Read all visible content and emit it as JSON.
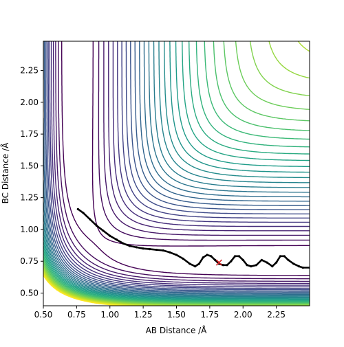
{
  "chart_data": {
    "type": "contour",
    "title": "",
    "xlabel": "AB Distance /Å",
    "ylabel": "BC Distance /Å",
    "xlim": [
      0.5,
      2.5
    ],
    "ylim": [
      0.4,
      2.48
    ],
    "xticks": [
      0.5,
      0.75,
      1.0,
      1.25,
      1.5,
      1.75,
      2.0,
      2.25
    ],
    "yticks": [
      0.5,
      0.75,
      1.0,
      1.25,
      1.5,
      1.75,
      2.0,
      2.25
    ],
    "xtick_labels": [
      "0.50",
      "0.75",
      "1.00",
      "1.25",
      "1.50",
      "1.75",
      "2.00",
      "2.25"
    ],
    "ytick_labels": [
      "0.50",
      "0.75",
      "1.00",
      "1.25",
      "1.50",
      "1.75",
      "2.00",
      "2.25"
    ],
    "grid": false,
    "colormap": "viridis",
    "contour_colors": [
      "#440154",
      "#482878",
      "#3e4a89",
      "#31688e",
      "#26828e",
      "#1f9e89",
      "#35b779",
      "#6ece58",
      "#b5de2b",
      "#fde725"
    ],
    "surface": {
      "type": "LEPS",
      "potential_levels": [
        -4.5,
        -4.35,
        -4.2,
        -4.05,
        -3.9,
        -3.75,
        -3.6,
        -3.45,
        -3.3,
        -3.15,
        -3.0,
        -2.85,
        -2.7,
        -2.55,
        -2.4,
        -2.25,
        -2.1,
        -1.95,
        -1.8,
        -1.65,
        -1.5,
        -1.35,
        -1.2,
        -1.05,
        -0.9,
        -0.75,
        -0.6,
        -0.45,
        -0.3,
        -0.15,
        0.0,
        0.15
      ]
    },
    "trajectory": {
      "color": "#000000",
      "points": [
        [
          0.76,
          1.16
        ],
        [
          0.8,
          1.13
        ],
        [
          0.85,
          1.08
        ],
        [
          0.9,
          1.03
        ],
        [
          0.95,
          0.99
        ],
        [
          1.0,
          0.95
        ],
        [
          1.05,
          0.92
        ],
        [
          1.1,
          0.89
        ],
        [
          1.15,
          0.87
        ],
        [
          1.2,
          0.86
        ],
        [
          1.25,
          0.85
        ],
        [
          1.3,
          0.845
        ],
        [
          1.35,
          0.84
        ],
        [
          1.4,
          0.835
        ],
        [
          1.45,
          0.82
        ],
        [
          1.5,
          0.8
        ],
        [
          1.55,
          0.77
        ],
        [
          1.6,
          0.73
        ],
        [
          1.64,
          0.71
        ],
        [
          1.67,
          0.73
        ],
        [
          1.7,
          0.78
        ],
        [
          1.73,
          0.8
        ],
        [
          1.76,
          0.79
        ],
        [
          1.79,
          0.76
        ],
        [
          1.82,
          0.73
        ],
        [
          1.85,
          0.72
        ],
        [
          1.88,
          0.72
        ],
        [
          1.91,
          0.75
        ],
        [
          1.94,
          0.79
        ],
        [
          1.97,
          0.79
        ],
        [
          2.0,
          0.76
        ],
        [
          2.03,
          0.72
        ],
        [
          2.06,
          0.71
        ],
        [
          2.1,
          0.72
        ],
        [
          2.14,
          0.76
        ],
        [
          2.18,
          0.74
        ],
        [
          2.22,
          0.71
        ],
        [
          2.25,
          0.74
        ],
        [
          2.28,
          0.79
        ],
        [
          2.31,
          0.79
        ],
        [
          2.34,
          0.76
        ],
        [
          2.38,
          0.73
        ],
        [
          2.42,
          0.71
        ],
        [
          2.45,
          0.7
        ],
        [
          2.5,
          0.7
        ]
      ]
    },
    "marker": {
      "x": 1.82,
      "y": 0.74,
      "symbol": "x",
      "color": "#d62728"
    }
  }
}
